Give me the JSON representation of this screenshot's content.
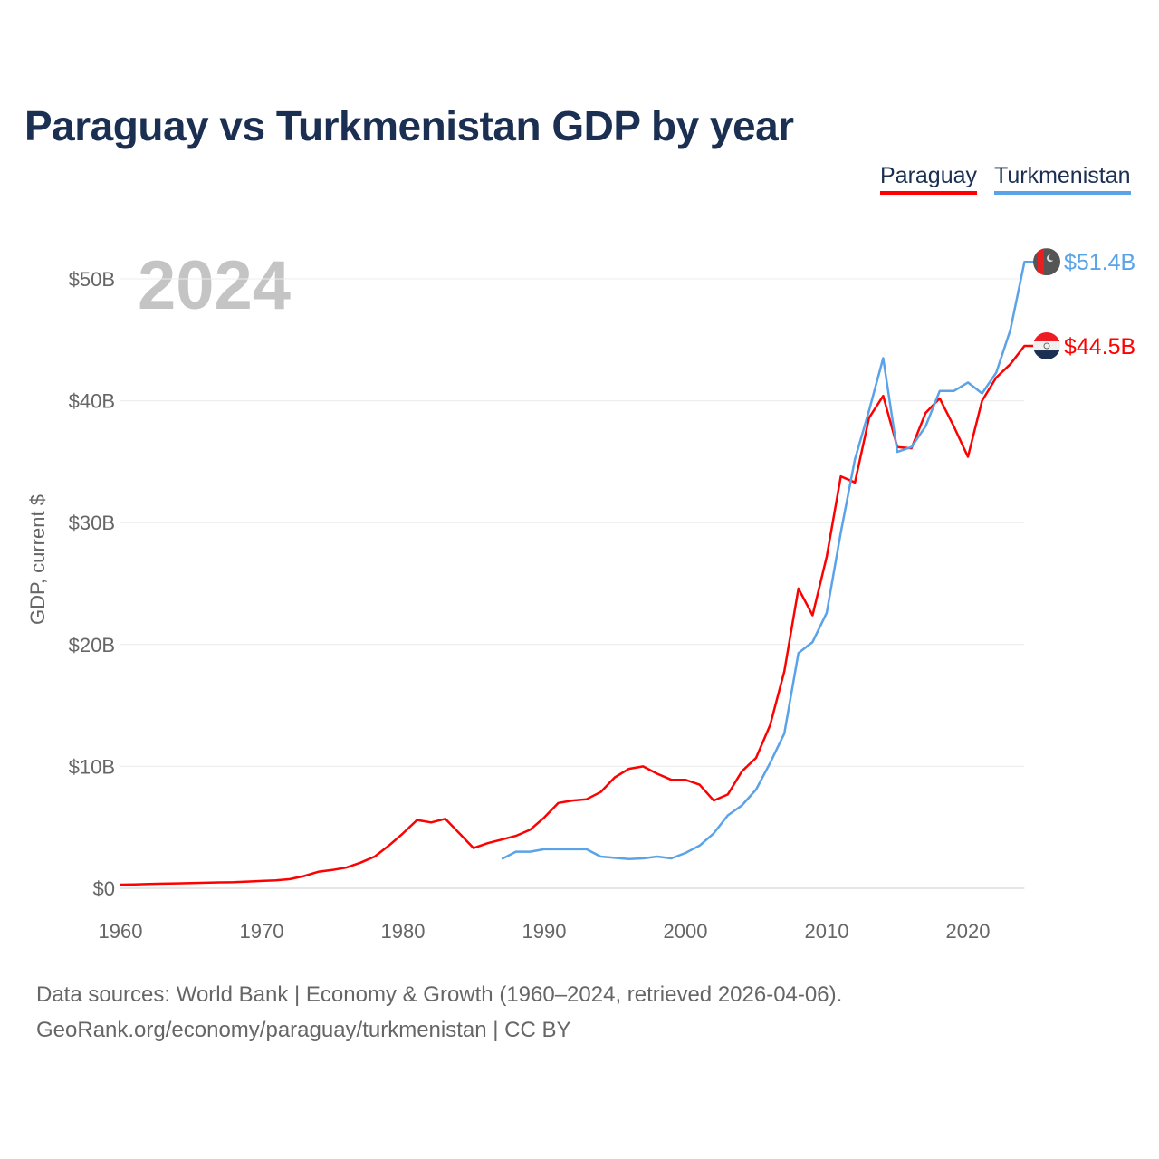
{
  "chart_data": {
    "type": "line",
    "title": "Paraguay vs Turkmenistan GDP by year",
    "year_label": "2024",
    "ylabel": "GDP, current $",
    "xlabel": "",
    "xlim": [
      1960,
      2024
    ],
    "ylim": [
      0,
      52
    ],
    "grid": true,
    "legend_placement": "top-right",
    "x_ticks": [
      1960,
      1970,
      1980,
      1990,
      2000,
      2010,
      2020
    ],
    "x_tick_labels": [
      "1960",
      "1970",
      "1980",
      "1990",
      "2000",
      "2010",
      "2020"
    ],
    "y_ticks": [
      0,
      10,
      20,
      30,
      40,
      50
    ],
    "y_tick_labels": [
      "$0",
      "$10B",
      "$20B",
      "$30B",
      "$40B",
      "$50B"
    ],
    "series": [
      {
        "name": "Paraguay",
        "color": "#ff0000",
        "end_label": "$44.5B",
        "flag": "paraguay-flag",
        "start_year": 1960,
        "values": [
          0.3,
          0.32,
          0.35,
          0.38,
          0.4,
          0.42,
          0.45,
          0.48,
          0.5,
          0.55,
          0.6,
          0.65,
          0.75,
          1.0,
          1.35,
          1.5,
          1.7,
          2.1,
          2.6,
          3.5,
          4.5,
          5.6,
          5.4,
          5.7,
          4.5,
          3.3,
          3.7,
          4.0,
          4.3,
          4.8,
          5.8,
          7.0,
          7.2,
          7.3,
          7.9,
          9.1,
          9.8,
          10.0,
          9.4,
          8.9,
          8.9,
          8.5,
          7.2,
          7.7,
          9.6,
          10.7,
          13.4,
          17.8,
          24.6,
          22.4,
          27.2,
          33.8,
          33.3,
          38.6,
          40.4,
          36.2,
          36.1,
          39.0,
          40.2,
          37.9,
          35.4,
          40.0,
          41.9,
          43.0,
          44.5
        ]
      },
      {
        "name": "Turkmenistan",
        "color": "#5aa3e8",
        "end_label": "$51.4B",
        "flag": "turkmenistan-flag",
        "start_year": 1987,
        "values": [
          2.4,
          3.0,
          3.0,
          3.2,
          3.2,
          3.2,
          3.2,
          2.6,
          2.5,
          2.4,
          2.45,
          2.6,
          2.45,
          2.9,
          3.5,
          4.5,
          5.98,
          6.8,
          8.1,
          10.3,
          12.7,
          19.3,
          20.2,
          22.6,
          29.2,
          35.2,
          39.2,
          43.5,
          35.8,
          36.2,
          37.9,
          40.8,
          40.8,
          41.5,
          40.6,
          42.3,
          45.8,
          51.4
        ]
      }
    ]
  },
  "footer": {
    "line1": "Data sources: World Bank | Economy & Growth (1960–2024, retrieved 2026-04-06).",
    "line2": "GeoRank.org/economy/paraguay/turkmenistan | CC BY"
  }
}
